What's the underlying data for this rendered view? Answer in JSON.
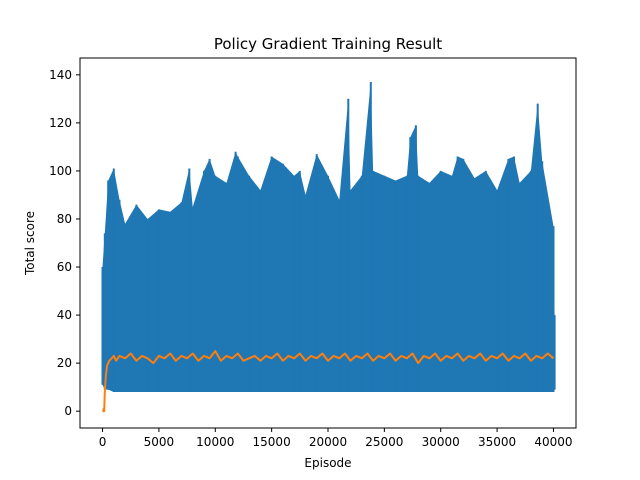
{
  "chart_data": {
    "type": "line",
    "title": "Policy Gradient Training Result",
    "xlabel": "Episode",
    "ylabel": "Total score",
    "xlim": [
      -2000,
      42000
    ],
    "ylim": [
      -7,
      147
    ],
    "xticks": [
      0,
      5000,
      10000,
      15000,
      20000,
      25000,
      30000,
      35000,
      40000
    ],
    "xtick_labels": [
      "0",
      "5000",
      "10000",
      "15000",
      "20000",
      "25000",
      "30000",
      "35000",
      "40000"
    ],
    "yticks": [
      0,
      20,
      40,
      60,
      80,
      100,
      120,
      140
    ],
    "ytick_labels": [
      "0",
      "20",
      "40",
      "60",
      "80",
      "100",
      "120",
      "140"
    ],
    "grid": false,
    "legend": "none",
    "series": [
      {
        "name": "",
        "color": "#1f77b4",
        "style": "envelope",
        "x": [
          0,
          200,
          500,
          1000,
          1500,
          2000,
          3000,
          4000,
          5000,
          6000,
          7000,
          7700,
          8000,
          9000,
          9500,
          10000,
          11000,
          11800,
          12000,
          13000,
          14000,
          15000,
          16000,
          17000,
          17500,
          18000,
          19000,
          20000,
          21000,
          21800,
          22000,
          23000,
          23800,
          24000,
          25000,
          26000,
          27000,
          27300,
          27800,
          28000,
          29000,
          30000,
          31000,
          31500,
          32000,
          33000,
          34000,
          35000,
          36000,
          36500,
          37000,
          38000,
          38600,
          39000,
          40000,
          40100
        ],
        "y_upper": [
          60,
          74,
          96,
          101,
          88,
          78,
          86,
          80,
          84,
          83,
          87,
          101,
          85,
          100,
          105,
          98,
          95,
          108,
          106,
          98,
          92,
          106,
          103,
          98,
          100,
          90,
          107,
          98,
          88,
          130,
          92,
          98,
          137,
          100,
          98,
          96,
          98,
          114,
          119,
          98,
          95,
          100,
          98,
          106,
          105,
          97,
          100,
          92,
          105,
          106,
          95,
          100,
          128,
          104,
          77,
          40
        ],
        "y_lower": [
          11,
          9,
          9,
          8,
          8,
          8,
          8,
          8,
          8,
          8,
          8,
          8,
          8,
          8,
          8,
          8,
          8,
          8,
          8,
          8,
          8,
          8,
          8,
          8,
          8,
          8,
          8,
          8,
          8,
          8,
          8,
          8,
          8,
          8,
          8,
          8,
          8,
          8,
          8,
          8,
          8,
          8,
          8,
          8,
          8,
          8,
          8,
          8,
          8,
          8,
          8,
          8,
          8,
          8,
          8,
          9
        ]
      },
      {
        "name": "",
        "color": "#ff7f0e",
        "style": "line",
        "x": [
          0,
          50,
          100,
          150,
          200,
          300,
          400,
          500,
          600,
          800,
          1000,
          1200,
          1500,
          2000,
          2500,
          3000,
          3500,
          4000,
          4500,
          5000,
          5500,
          6000,
          6500,
          7000,
          7500,
          8000,
          8500,
          9000,
          9500,
          10000,
          10500,
          11000,
          11500,
          12000,
          12500,
          13000,
          13500,
          14000,
          14500,
          15000,
          15500,
          16000,
          16500,
          17000,
          17500,
          18000,
          18500,
          19000,
          19500,
          20000,
          20500,
          21000,
          21500,
          22000,
          22500,
          23000,
          23500,
          24000,
          24500,
          25000,
          25500,
          26000,
          26500,
          27000,
          27500,
          28000,
          28500,
          29000,
          29500,
          30000,
          30500,
          31000,
          31500,
          32000,
          32500,
          33000,
          33500,
          34000,
          34500,
          35000,
          35500,
          36000,
          36500,
          37000,
          37500,
          38000,
          38500,
          39000,
          39500,
          40000
        ],
        "y": [
          0,
          0,
          1,
          0,
          8,
          15,
          19,
          20,
          21,
          22,
          23,
          21,
          23,
          22,
          24,
          21,
          23,
          22,
          20,
          23,
          22,
          24,
          21,
          23,
          22,
          24,
          21,
          23,
          22,
          25,
          21,
          23,
          22,
          24,
          21,
          22,
          23,
          21,
          23,
          22,
          24,
          21,
          23,
          22,
          24,
          21,
          23,
          22,
          24,
          21,
          23,
          22,
          24,
          21,
          23,
          22,
          24,
          21,
          23,
          22,
          24,
          21,
          23,
          22,
          24,
          20,
          23,
          22,
          24,
          21,
          23,
          22,
          24,
          21,
          23,
          22,
          24,
          21,
          23,
          22,
          24,
          21,
          23,
          22,
          24,
          21,
          23,
          22,
          24,
          22
        ]
      }
    ]
  }
}
